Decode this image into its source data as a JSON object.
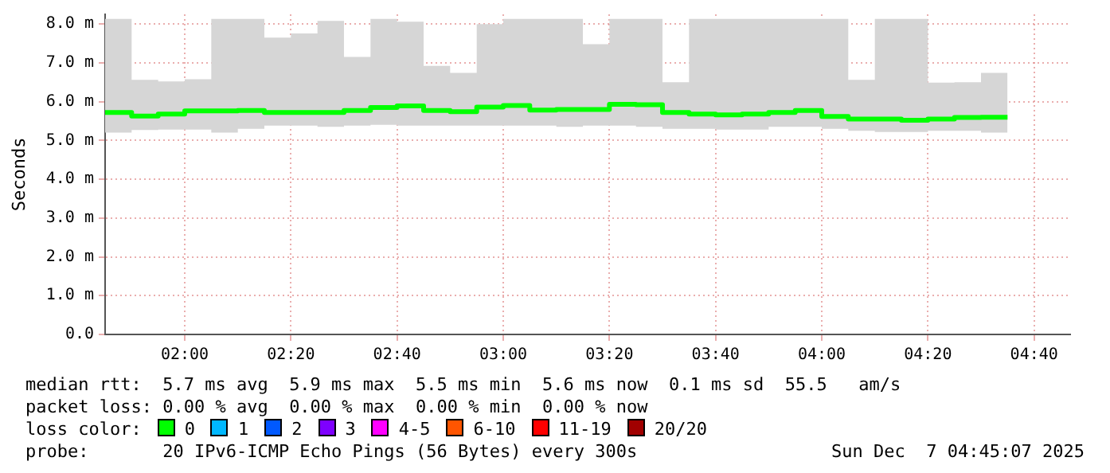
{
  "chart_data": {
    "type": "step",
    "ylabel": "Seconds",
    "xlim": [
      1.75,
      4.78
    ],
    "xticks": [
      {
        "value": 2,
        "label": "02:00"
      },
      {
        "value": 2.3333,
        "label": "02:20"
      },
      {
        "value": 2.6667,
        "label": "02:40"
      },
      {
        "value": 3,
        "label": "03:00"
      },
      {
        "value": 3.3333,
        "label": "03:20"
      },
      {
        "value": 3.6667,
        "label": "03:40"
      },
      {
        "value": 4,
        "label": "04:00"
      },
      {
        "value": 4.3333,
        "label": "04:20"
      },
      {
        "value": 4.6667,
        "label": "04:40"
      }
    ],
    "ylim": [
      0,
      8.25
    ],
    "yticks": [
      {
        "value": 0,
        "label": "0.0"
      },
      {
        "value": 1,
        "label": "1.0 m"
      },
      {
        "value": 2,
        "label": "2.0 m"
      },
      {
        "value": 3,
        "label": "3.0 m"
      },
      {
        "value": 4,
        "label": "4.0 m"
      },
      {
        "value": 5,
        "label": "5.0 m"
      },
      {
        "value": 6,
        "label": "6.0 m"
      },
      {
        "value": 7,
        "label": "7.0 m"
      },
      {
        "value": 8,
        "label": "8.0 m"
      }
    ],
    "grid": true,
    "legend": false,
    "marker": "none",
    "line_style": "solid",
    "series": [
      {
        "color": "#00ff00",
        "x": [
          1.75,
          1.8333,
          1.9167,
          2,
          2.0833,
          2.1667,
          2.25,
          2.3333,
          2.4167,
          2.5,
          2.5833,
          2.6667,
          2.75,
          2.8333,
          2.9167,
          3,
          3.0833,
          3.1667,
          3.25,
          3.3333,
          3.4167,
          3.5,
          3.5833,
          3.6667,
          3.75,
          3.8333,
          3.9167,
          4,
          4.0833,
          4.1667,
          4.25,
          4.3333,
          4.4167,
          4.5,
          4.5833
        ],
        "values": [
          5.68,
          5.72,
          5.63,
          5.68,
          5.76,
          5.76,
          5.77,
          5.72,
          5.72,
          5.72,
          5.77,
          5.85,
          5.89,
          5.77,
          5.74,
          5.86,
          5.9,
          5.78,
          5.8,
          5.8,
          5.93,
          5.92,
          5.72,
          5.68,
          5.66,
          5.68,
          5.72,
          5.77,
          5.62,
          5.55,
          5.55,
          5.52,
          5.55,
          5.59,
          5.6
        ],
        "lower": [
          5.2,
          5.2,
          5.27,
          5.28,
          5.28,
          5.2,
          5.3,
          5.38,
          5.38,
          5.35,
          5.38,
          5.4,
          5.38,
          5.38,
          5.38,
          5.38,
          5.38,
          5.38,
          5.35,
          5.38,
          5.38,
          5.35,
          5.3,
          5.3,
          5.28,
          5.28,
          5.35,
          5.35,
          5.3,
          5.25,
          5.22,
          5.22,
          5.25,
          5.25,
          5.2
        ],
        "upper": [
          8.13,
          8.13,
          6.56,
          6.52,
          6.58,
          8.13,
          8.13,
          7.65,
          7.76,
          8.08,
          7.15,
          8.13,
          8.06,
          6.92,
          6.74,
          8.0,
          8.13,
          8.13,
          8.13,
          7.48,
          8.13,
          8.13,
          6.5,
          8.13,
          8.13,
          8.13,
          8.13,
          8.13,
          8.13,
          6.56,
          8.13,
          8.13,
          6.49,
          6.5,
          6.74
        ]
      }
    ],
    "annotations": [
      "median rtt:  5.7 ms avg  5.9 ms max  5.5 ms min  5.6 ms now  0.1 ms sd  55.5   am/s",
      "packet loss: 0.00 % avg  0.00 % max  0.00 % min  0.00 % now",
      "loss color:",
      "0",
      "1",
      "2",
      "3",
      "4-5",
      "6-10",
      "11-19",
      "20/20",
      "probe:       20 IPv6-ICMP Echo Pings (56 Bytes) every 300s",
      "Sun Dec  7 04:45:07 2025"
    ]
  }
}
